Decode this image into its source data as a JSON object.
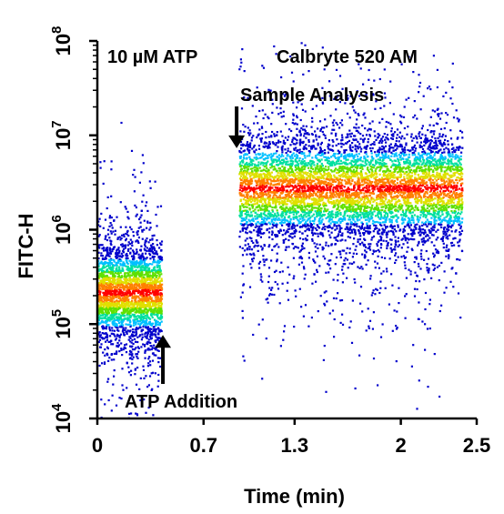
{
  "chart_data": {
    "type": "scatter",
    "subtype": "density-scatter (flow cytometry time plot)",
    "title": "",
    "xlabel": "Time  (min)",
    "ylabel": "FITC-H",
    "xlim": [
      0,
      2.5
    ],
    "ylim": [
      10000,
      100000000
    ],
    "yscale": "log",
    "x_ticks": [
      {
        "value": 0,
        "label": "0"
      },
      {
        "value": 0.7,
        "label": "0.7"
      },
      {
        "value": 1.3,
        "label": "1.3"
      },
      {
        "value": 2,
        "label": "2"
      },
      {
        "value": 2.5,
        "label": "2.5"
      }
    ],
    "y_ticks": [
      {
        "value": 10000,
        "base": "10",
        "exp": "4"
      },
      {
        "value": 100000,
        "base": "10",
        "exp": "5"
      },
      {
        "value": 1000000,
        "base": "10",
        "exp": "6"
      },
      {
        "value": 10000000,
        "base": "10",
        "exp": "7"
      },
      {
        "value": 100000000,
        "base": "10",
        "exp": "8"
      }
    ],
    "grid": false,
    "colormap": [
      "#0000cc",
      "#0060ff",
      "#00c0ff",
      "#00e0a0",
      "#60e000",
      "#e0e000",
      "#ff8000",
      "#ff0000"
    ],
    "populations": [
      {
        "x_range": [
          0.0,
          0.42
        ],
        "y_center": 220000,
        "y_spread_decades": 0.28,
        "density": "high"
      },
      {
        "x_range": [
          0.93,
          2.4
        ],
        "y_center": 2800000,
        "y_spread_decades": 0.3,
        "density": "high"
      }
    ],
    "annotations": [
      {
        "text": "10 µM ATP",
        "position": "top-left"
      },
      {
        "text": "Calbryte 520 AM",
        "position": "top-right"
      },
      {
        "text": "Sample Analysis",
        "arrow_at": {
          "x": 0.93,
          "y": 7000000
        },
        "direction": "down"
      },
      {
        "text": "ATP Addition",
        "arrow_at": {
          "x": 0.42,
          "y": 80000
        },
        "direction": "up"
      }
    ]
  }
}
